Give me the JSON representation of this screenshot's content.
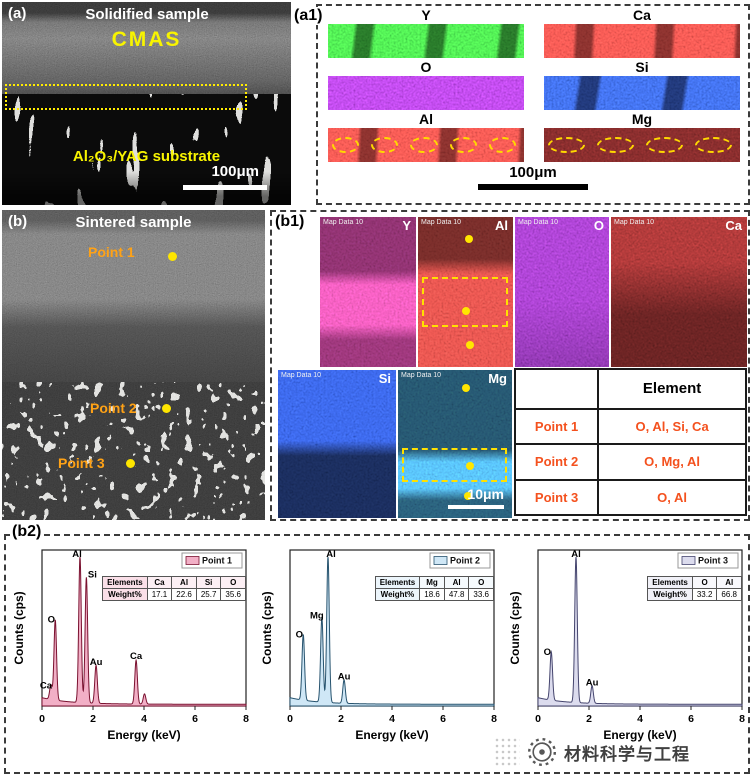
{
  "colors": {
    "highlight_yellow": "#ffe600",
    "point_label_orange": "#ffa216",
    "table_text_orange": "#f4511e"
  },
  "figure": {
    "panel_a": {
      "tag": "(a)",
      "title": "Solidified sample",
      "cmas": "CMAS",
      "substrate": "Al₂O₃/YAG substrate",
      "scale": "100μm"
    },
    "panel_a1": {
      "tag": "(a1)",
      "scale": "100μm",
      "maps": [
        {
          "element": "Y",
          "color": "green"
        },
        {
          "element": "Ca",
          "color": "red"
        },
        {
          "element": "O",
          "color": "purple"
        },
        {
          "element": "Si",
          "color": "blue"
        },
        {
          "element": "Al",
          "color": "red",
          "ellipses": 5
        },
        {
          "element": "Mg",
          "color": "darkred",
          "ellipses": 4
        }
      ]
    },
    "panel_b": {
      "tag": "(b)",
      "title": "Sintered sample",
      "points": [
        "Point 1",
        "Point 2",
        "Point 3"
      ]
    },
    "panel_b1": {
      "tag": "(b1)",
      "map_label": "Map Data 10",
      "scale": "10μm",
      "maps": [
        {
          "element": "Y",
          "color": "magenta"
        },
        {
          "element": "Al",
          "color": "red2",
          "dots": 3,
          "dashed": true
        },
        {
          "element": "O",
          "color": "purple2"
        },
        {
          "element": "Ca",
          "color": "darkred2"
        },
        {
          "element": "Si",
          "color": "blue2"
        },
        {
          "element": "Mg",
          "color": "cyan",
          "dots": 3,
          "dashed": true
        }
      ],
      "table": {
        "header": "Element",
        "rows": [
          {
            "point": "Point 1",
            "elements": "O, Al, Si, Ca"
          },
          {
            "point": "Point 2",
            "elements": "O, Mg, Al"
          },
          {
            "point": "Point 3",
            "elements": "O, Al"
          }
        ]
      }
    },
    "panel_b2": {
      "tag": "(b2)"
    },
    "watermark": "材料科学与工程"
  },
  "chart_data": [
    {
      "type": "area",
      "title": "EDS spectrum - Point 1",
      "legend": "Point 1",
      "xlabel": "Energy (keV)",
      "ylabel": "Counts (cps)",
      "xlim": [
        0,
        8
      ],
      "x_ticks": [
        0,
        2,
        4,
        6,
        8
      ],
      "fill": "#f2afc6",
      "stroke": "#7a1230",
      "peaks": [
        {
          "label": "Ca",
          "kev": 0.35,
          "height": 0.1,
          "dx": -5
        },
        {
          "label": "O",
          "kev": 0.52,
          "height": 0.55,
          "dx": -4
        },
        {
          "label": "Al",
          "kev": 1.49,
          "height": 1.0,
          "dx": -3
        },
        {
          "label": "Si",
          "kev": 1.74,
          "height": 0.86,
          "dx": 6
        },
        {
          "label": "Au",
          "kev": 2.12,
          "height": 0.26
        },
        {
          "label": "Ca",
          "kev": 3.69,
          "height": 0.3
        },
        {
          "label": "",
          "kev": 4.02,
          "height": 0.07
        }
      ],
      "table": {
        "row1_label": "Elements",
        "row2_label": "Weight%",
        "elements": [
          "Ca",
          "Al",
          "Si",
          "O"
        ],
        "weights": [
          "17.1",
          "22.6",
          "25.7",
          "35.6"
        ]
      }
    },
    {
      "type": "area",
      "title": "EDS spectrum - Point 2",
      "legend": "Point 2",
      "xlabel": "Energy (keV)",
      "ylabel": "Counts (cps)",
      "xlim": [
        0,
        8
      ],
      "x_ticks": [
        0,
        2,
        4,
        6,
        8
      ],
      "fill": "#cfe7f6",
      "stroke": "#27536e",
      "peaks": [
        {
          "label": "O",
          "kev": 0.52,
          "height": 0.45,
          "dx": -4
        },
        {
          "label": "Mg",
          "kev": 1.25,
          "height": 0.58,
          "dx": -5
        },
        {
          "label": "Al",
          "kev": 1.49,
          "height": 1.0,
          "dx": 3
        },
        {
          "label": "Au",
          "kev": 2.12,
          "height": 0.16
        }
      ],
      "table": {
        "row1_label": "Elements",
        "row2_label": "Weight%",
        "elements": [
          "Mg",
          "Al",
          "O"
        ],
        "weights": [
          "18.6",
          "47.8",
          "33.6"
        ]
      }
    },
    {
      "type": "area",
      "title": "EDS spectrum - Point 3",
      "legend": "Point 3",
      "xlabel": "Energy (keV)",
      "ylabel": "Counts (cps)",
      "xlim": [
        0,
        8
      ],
      "x_ticks": [
        0,
        2,
        4,
        6,
        8
      ],
      "fill": "#dcdcee",
      "stroke": "#45456e",
      "peaks": [
        {
          "label": "O",
          "kev": 0.52,
          "height": 0.33,
          "dx": -4
        },
        {
          "label": "Al",
          "kev": 1.49,
          "height": 1.0
        },
        {
          "label": "Au",
          "kev": 2.12,
          "height": 0.12
        }
      ],
      "table": {
        "row1_label": "Elements",
        "row2_label": "Weight%",
        "elements": [
          "O",
          "Al"
        ],
        "weights": [
          "33.2",
          "66.8"
        ]
      }
    }
  ]
}
